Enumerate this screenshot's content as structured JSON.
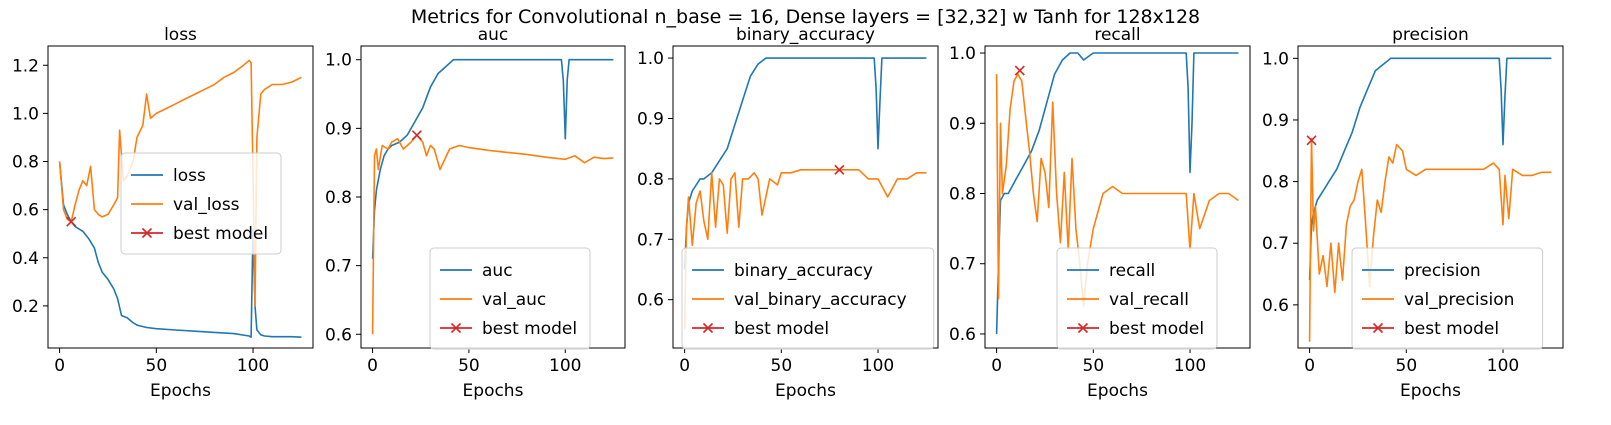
{
  "suptitle": "Metrics for Convolutional n_base = 16, Dense layers = [32,32] w Tanh for 128x128",
  "colors": {
    "train": "#1f77b4",
    "val": "#ff7f0e",
    "best": "#d62728"
  },
  "chart_data": [
    {
      "type": "line",
      "title": "loss",
      "xlabel": "Epochs",
      "ylabel": "",
      "xlim": [
        -6,
        131
      ],
      "ylim": [
        0.025,
        1.28
      ],
      "xticks": [
        0,
        50,
        100
      ],
      "yticks": [
        0.2,
        0.4,
        0.6,
        0.8,
        1.0,
        1.2
      ],
      "ytick_labels": [
        "0.2",
        "0.4",
        "0.6",
        "0.8",
        "1.0",
        "1.2"
      ],
      "legend_position": "center-right",
      "legend": [
        "loss",
        "val_loss",
        "best model"
      ],
      "series": [
        {
          "name": "loss",
          "role": "train",
          "x": [
            0,
            2,
            4,
            6,
            8,
            10,
            12,
            15,
            18,
            20,
            22,
            25,
            28,
            30,
            32,
            35,
            38,
            40,
            45,
            50,
            60,
            70,
            80,
            90,
            98,
            99,
            100,
            101,
            102,
            104,
            106,
            110,
            115,
            120,
            125
          ],
          "y": [
            0.8,
            0.62,
            0.58,
            0.55,
            0.53,
            0.52,
            0.51,
            0.48,
            0.44,
            0.38,
            0.34,
            0.31,
            0.27,
            0.23,
            0.16,
            0.15,
            0.13,
            0.12,
            0.11,
            0.105,
            0.1,
            0.095,
            0.09,
            0.085,
            0.075,
            0.07,
            0.52,
            0.2,
            0.1,
            0.08,
            0.075,
            0.072,
            0.072,
            0.072,
            0.07
          ]
        },
        {
          "name": "val_loss",
          "role": "val",
          "x": [
            0,
            2,
            4,
            6,
            8,
            10,
            12,
            14,
            16,
            18,
            20,
            22,
            25,
            28,
            30,
            31,
            33,
            35,
            38,
            40,
            43,
            45,
            47,
            50,
            55,
            60,
            65,
            70,
            75,
            80,
            85,
            90,
            95,
            98,
            99,
            100,
            101,
            102,
            104,
            106,
            110,
            115,
            120,
            125
          ],
          "y": [
            0.8,
            0.6,
            0.56,
            0.55,
            0.62,
            0.68,
            0.72,
            0.7,
            0.78,
            0.6,
            0.58,
            0.57,
            0.58,
            0.62,
            0.65,
            0.93,
            0.72,
            0.74,
            0.8,
            0.9,
            0.95,
            1.08,
            0.98,
            1.0,
            1.02,
            1.04,
            1.06,
            1.08,
            1.1,
            1.12,
            1.15,
            1.17,
            1.2,
            1.22,
            1.21,
            0.75,
            0.2,
            0.9,
            1.08,
            1.1,
            1.12,
            1.12,
            1.13,
            1.15
          ]
        },
        {
          "name": "best model",
          "role": "best",
          "x": [
            6
          ],
          "y": [
            0.55
          ]
        }
      ]
    },
    {
      "type": "line",
      "title": "auc",
      "xlabel": "Epochs",
      "ylabel": "",
      "xlim": [
        -6,
        131
      ],
      "ylim": [
        0.58,
        1.02
      ],
      "xticks": [
        0,
        50,
        100
      ],
      "yticks": [
        0.6,
        0.7,
        0.8,
        0.9,
        1.0
      ],
      "ytick_labels": [
        "0.6",
        "0.7",
        "0.8",
        "0.9",
        "1.0"
      ],
      "legend_position": "lower-right",
      "legend": [
        "auc",
        "val_auc",
        "best model"
      ],
      "series": [
        {
          "name": "auc",
          "role": "train",
          "x": [
            0,
            1,
            2,
            4,
            6,
            8,
            10,
            14,
            18,
            22,
            26,
            30,
            34,
            38,
            42,
            45,
            50,
            60,
            70,
            80,
            90,
            98,
            99,
            100,
            101,
            102,
            110,
            120,
            125
          ],
          "y": [
            0.71,
            0.78,
            0.81,
            0.84,
            0.86,
            0.87,
            0.875,
            0.88,
            0.89,
            0.91,
            0.93,
            0.96,
            0.98,
            0.99,
            1.0,
            1.0,
            1.0,
            1.0,
            1.0,
            1.0,
            1.0,
            1.0,
            0.97,
            0.885,
            0.97,
            1.0,
            1.0,
            1.0,
            1.0
          ]
        },
        {
          "name": "val_auc",
          "role": "val",
          "x": [
            0,
            1,
            2,
            3,
            5,
            8,
            10,
            13,
            16,
            20,
            23,
            26,
            28,
            30,
            32,
            35,
            40,
            45,
            50,
            60,
            70,
            80,
            90,
            100,
            105,
            110,
            115,
            120,
            125
          ],
          "y": [
            0.6,
            0.86,
            0.87,
            0.84,
            0.875,
            0.87,
            0.88,
            0.885,
            0.87,
            0.88,
            0.89,
            0.88,
            0.86,
            0.875,
            0.87,
            0.84,
            0.87,
            0.875,
            0.872,
            0.868,
            0.865,
            0.862,
            0.858,
            0.855,
            0.86,
            0.85,
            0.858,
            0.856,
            0.857
          ]
        },
        {
          "name": "best model",
          "role": "best",
          "x": [
            23
          ],
          "y": [
            0.89
          ]
        }
      ]
    },
    {
      "type": "line",
      "title": "binary_accuracy",
      "xlabel": "Epochs",
      "ylabel": "",
      "xlim": [
        -6,
        131
      ],
      "ylim": [
        0.52,
        1.02
      ],
      "xticks": [
        0,
        50,
        100
      ],
      "yticks": [
        0.6,
        0.7,
        0.8,
        0.9,
        1.0
      ],
      "ytick_labels": [
        "0.6",
        "0.7",
        "0.8",
        "0.9",
        "1.0"
      ],
      "legend_position": "lower-right",
      "legend": [
        "binary_accuracy",
        "val_binary_accuracy",
        "best model"
      ],
      "series": [
        {
          "name": "binary_accuracy",
          "role": "train",
          "x": [
            0,
            1,
            2,
            4,
            6,
            8,
            10,
            14,
            18,
            22,
            26,
            30,
            34,
            38,
            42,
            45,
            50,
            60,
            70,
            80,
            90,
            98,
            99,
            100,
            101,
            102,
            110,
            120,
            125
          ],
          "y": [
            0.65,
            0.72,
            0.76,
            0.78,
            0.79,
            0.8,
            0.8,
            0.81,
            0.83,
            0.85,
            0.89,
            0.93,
            0.97,
            0.99,
            1.0,
            1.0,
            1.0,
            1.0,
            1.0,
            1.0,
            1.0,
            1.0,
            0.95,
            0.85,
            0.93,
            1.0,
            1.0,
            1.0,
            1.0
          ]
        },
        {
          "name": "val_binary_accuracy",
          "role": "val",
          "x": [
            0,
            1,
            2,
            4,
            6,
            8,
            10,
            12,
            14,
            16,
            18,
            20,
            22,
            24,
            26,
            28,
            30,
            33,
            36,
            38,
            40,
            44,
            48,
            50,
            55,
            60,
            70,
            80,
            90,
            95,
            100,
            105,
            110,
            115,
            120,
            125
          ],
          "y": [
            0.55,
            0.72,
            0.77,
            0.69,
            0.76,
            0.78,
            0.73,
            0.7,
            0.81,
            0.72,
            0.8,
            0.79,
            0.71,
            0.8,
            0.81,
            0.72,
            0.8,
            0.8,
            0.81,
            0.8,
            0.74,
            0.8,
            0.79,
            0.81,
            0.81,
            0.815,
            0.815,
            0.815,
            0.815,
            0.8,
            0.8,
            0.77,
            0.8,
            0.8,
            0.81,
            0.81
          ]
        },
        {
          "name": "best model",
          "role": "best",
          "x": [
            80
          ],
          "y": [
            0.815
          ]
        }
      ]
    },
    {
      "type": "line",
      "title": "recall",
      "xlabel": "Epochs",
      "ylabel": "",
      "xlim": [
        -6,
        131
      ],
      "ylim": [
        0.58,
        1.01
      ],
      "xticks": [
        0,
        50,
        100
      ],
      "yticks": [
        0.6,
        0.7,
        0.8,
        0.9,
        1.0
      ],
      "ytick_labels": [
        "0.6",
        "0.7",
        "0.8",
        "0.9",
        "1.0"
      ],
      "legend_position": "lower-right",
      "legend": [
        "recall",
        "val_recall",
        "best model"
      ],
      "series": [
        {
          "name": "recall",
          "role": "train",
          "x": [
            0,
            1,
            2,
            4,
            6,
            8,
            10,
            14,
            18,
            22,
            26,
            30,
            34,
            38,
            42,
            45,
            50,
            60,
            70,
            80,
            90,
            98,
            99,
            100,
            101,
            102,
            110,
            120,
            125
          ],
          "y": [
            0.6,
            0.7,
            0.79,
            0.8,
            0.8,
            0.81,
            0.82,
            0.84,
            0.86,
            0.89,
            0.93,
            0.97,
            0.99,
            1.0,
            1.0,
            0.99,
            1.0,
            1.0,
            1.0,
            1.0,
            1.0,
            1.0,
            0.95,
            0.83,
            0.9,
            1.0,
            1.0,
            1.0,
            1.0
          ]
        },
        {
          "name": "val_recall",
          "role": "val",
          "x": [
            0,
            1,
            2,
            3,
            5,
            7,
            9,
            11,
            13,
            15,
            17,
            19,
            21,
            23,
            25,
            27,
            29,
            31,
            33,
            35,
            37,
            39,
            41,
            43,
            45,
            47,
            50,
            55,
            60,
            65,
            70,
            75,
            80,
            85,
            90,
            95,
            98,
            100,
            102,
            105,
            110,
            115,
            120,
            125
          ],
          "y": [
            0.97,
            0.65,
            0.9,
            0.8,
            0.84,
            0.92,
            0.96,
            0.97,
            0.96,
            0.91,
            0.86,
            0.8,
            0.76,
            0.85,
            0.83,
            0.78,
            0.93,
            0.8,
            0.73,
            0.83,
            0.72,
            0.85,
            0.75,
            0.7,
            0.64,
            0.7,
            0.75,
            0.8,
            0.81,
            0.8,
            0.8,
            0.8,
            0.8,
            0.8,
            0.8,
            0.8,
            0.8,
            0.72,
            0.8,
            0.75,
            0.79,
            0.8,
            0.8,
            0.79
          ]
        },
        {
          "name": "best model",
          "role": "best",
          "x": [
            12
          ],
          "y": [
            0.975
          ]
        }
      ]
    },
    {
      "type": "line",
      "title": "precision",
      "xlabel": "Epochs",
      "ylabel": "",
      "xlim": [
        -6,
        131
      ],
      "ylim": [
        0.53,
        1.02
      ],
      "xticks": [
        0,
        50,
        100
      ],
      "yticks": [
        0.6,
        0.7,
        0.8,
        0.9,
        1.0
      ],
      "ytick_labels": [
        "0.6",
        "0.7",
        "0.8",
        "0.9",
        "1.0"
      ],
      "legend_position": "lower-right",
      "legend": [
        "precision",
        "val_precision",
        "best model"
      ],
      "series": [
        {
          "name": "precision",
          "role": "train",
          "x": [
            0,
            1,
            2,
            4,
            6,
            8,
            10,
            14,
            18,
            22,
            26,
            30,
            34,
            38,
            42,
            45,
            50,
            60,
            70,
            80,
            90,
            98,
            99,
            100,
            101,
            102,
            110,
            120,
            125
          ],
          "y": [
            0.64,
            0.73,
            0.75,
            0.77,
            0.78,
            0.79,
            0.8,
            0.82,
            0.85,
            0.88,
            0.92,
            0.95,
            0.98,
            0.99,
            1.0,
            1.0,
            1.0,
            1.0,
            1.0,
            1.0,
            1.0,
            1.0,
            0.95,
            0.86,
            0.94,
            1.0,
            1.0,
            1.0,
            1.0
          ]
        },
        {
          "name": "val_precision",
          "role": "val",
          "x": [
            0,
            1,
            2,
            3,
            5,
            7,
            9,
            11,
            13,
            15,
            17,
            19,
            21,
            23,
            25,
            27,
            29,
            31,
            33,
            35,
            37,
            39,
            41,
            43,
            45,
            48,
            50,
            55,
            60,
            70,
            80,
            90,
            95,
            98,
            100,
            101,
            103,
            105,
            110,
            115,
            120,
            125
          ],
          "y": [
            0.54,
            0.87,
            0.72,
            0.76,
            0.65,
            0.68,
            0.63,
            0.7,
            0.62,
            0.7,
            0.64,
            0.73,
            0.76,
            0.77,
            0.8,
            0.82,
            0.73,
            0.63,
            0.71,
            0.77,
            0.75,
            0.8,
            0.84,
            0.83,
            0.86,
            0.85,
            0.82,
            0.81,
            0.82,
            0.82,
            0.82,
            0.82,
            0.83,
            0.82,
            0.73,
            0.81,
            0.74,
            0.82,
            0.81,
            0.81,
            0.815,
            0.815
          ]
        },
        {
          "name": "best model",
          "role": "best",
          "x": [
            1
          ],
          "y": [
            0.867
          ]
        }
      ]
    }
  ]
}
